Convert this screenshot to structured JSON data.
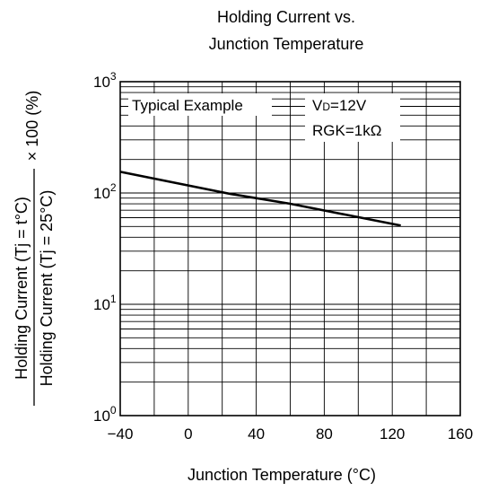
{
  "chart_data": {
    "type": "line",
    "title_line1": "Holding Current vs.",
    "title_line2": "Junction Temperature",
    "xlabel": "Junction Temperature  (°C)",
    "ylabel": {
      "numerator": "Holding Current (Tj = t°C)",
      "denominator": "Holding Current (Tj = 25°C)",
      "multiplier": "× 100 (%)"
    },
    "x_scale": "linear",
    "y_scale": "log",
    "xlim": [
      -40,
      160
    ],
    "ylim": [
      1,
      1000
    ],
    "x_ticks": [
      {
        "value": -40,
        "label": "−40"
      },
      {
        "value": 0,
        "label": "0"
      },
      {
        "value": 40,
        "label": "40"
      },
      {
        "value": 80,
        "label": "80"
      },
      {
        "value": 120,
        "label": "120"
      },
      {
        "value": 160,
        "label": "160"
      }
    ],
    "y_ticks": [
      {
        "value": 1,
        "base": "10",
        "exp": "0"
      },
      {
        "value": 10,
        "base": "10",
        "exp": "1"
      },
      {
        "value": 100,
        "base": "10",
        "exp": "2"
      },
      {
        "value": 1000,
        "base": "10",
        "exp": "3"
      }
    ],
    "grid": true,
    "annotations": {
      "typical": "Typical Example",
      "vd_main": "V",
      "vd_sub": "D",
      "vd_value": "=12V",
      "rgk": "RGK=1kΩ"
    },
    "series": [
      {
        "x": [
          -40,
          25,
          60,
          125
        ],
        "y": [
          155,
          98,
          80,
          51
        ],
        "color": "#000000"
      }
    ]
  }
}
